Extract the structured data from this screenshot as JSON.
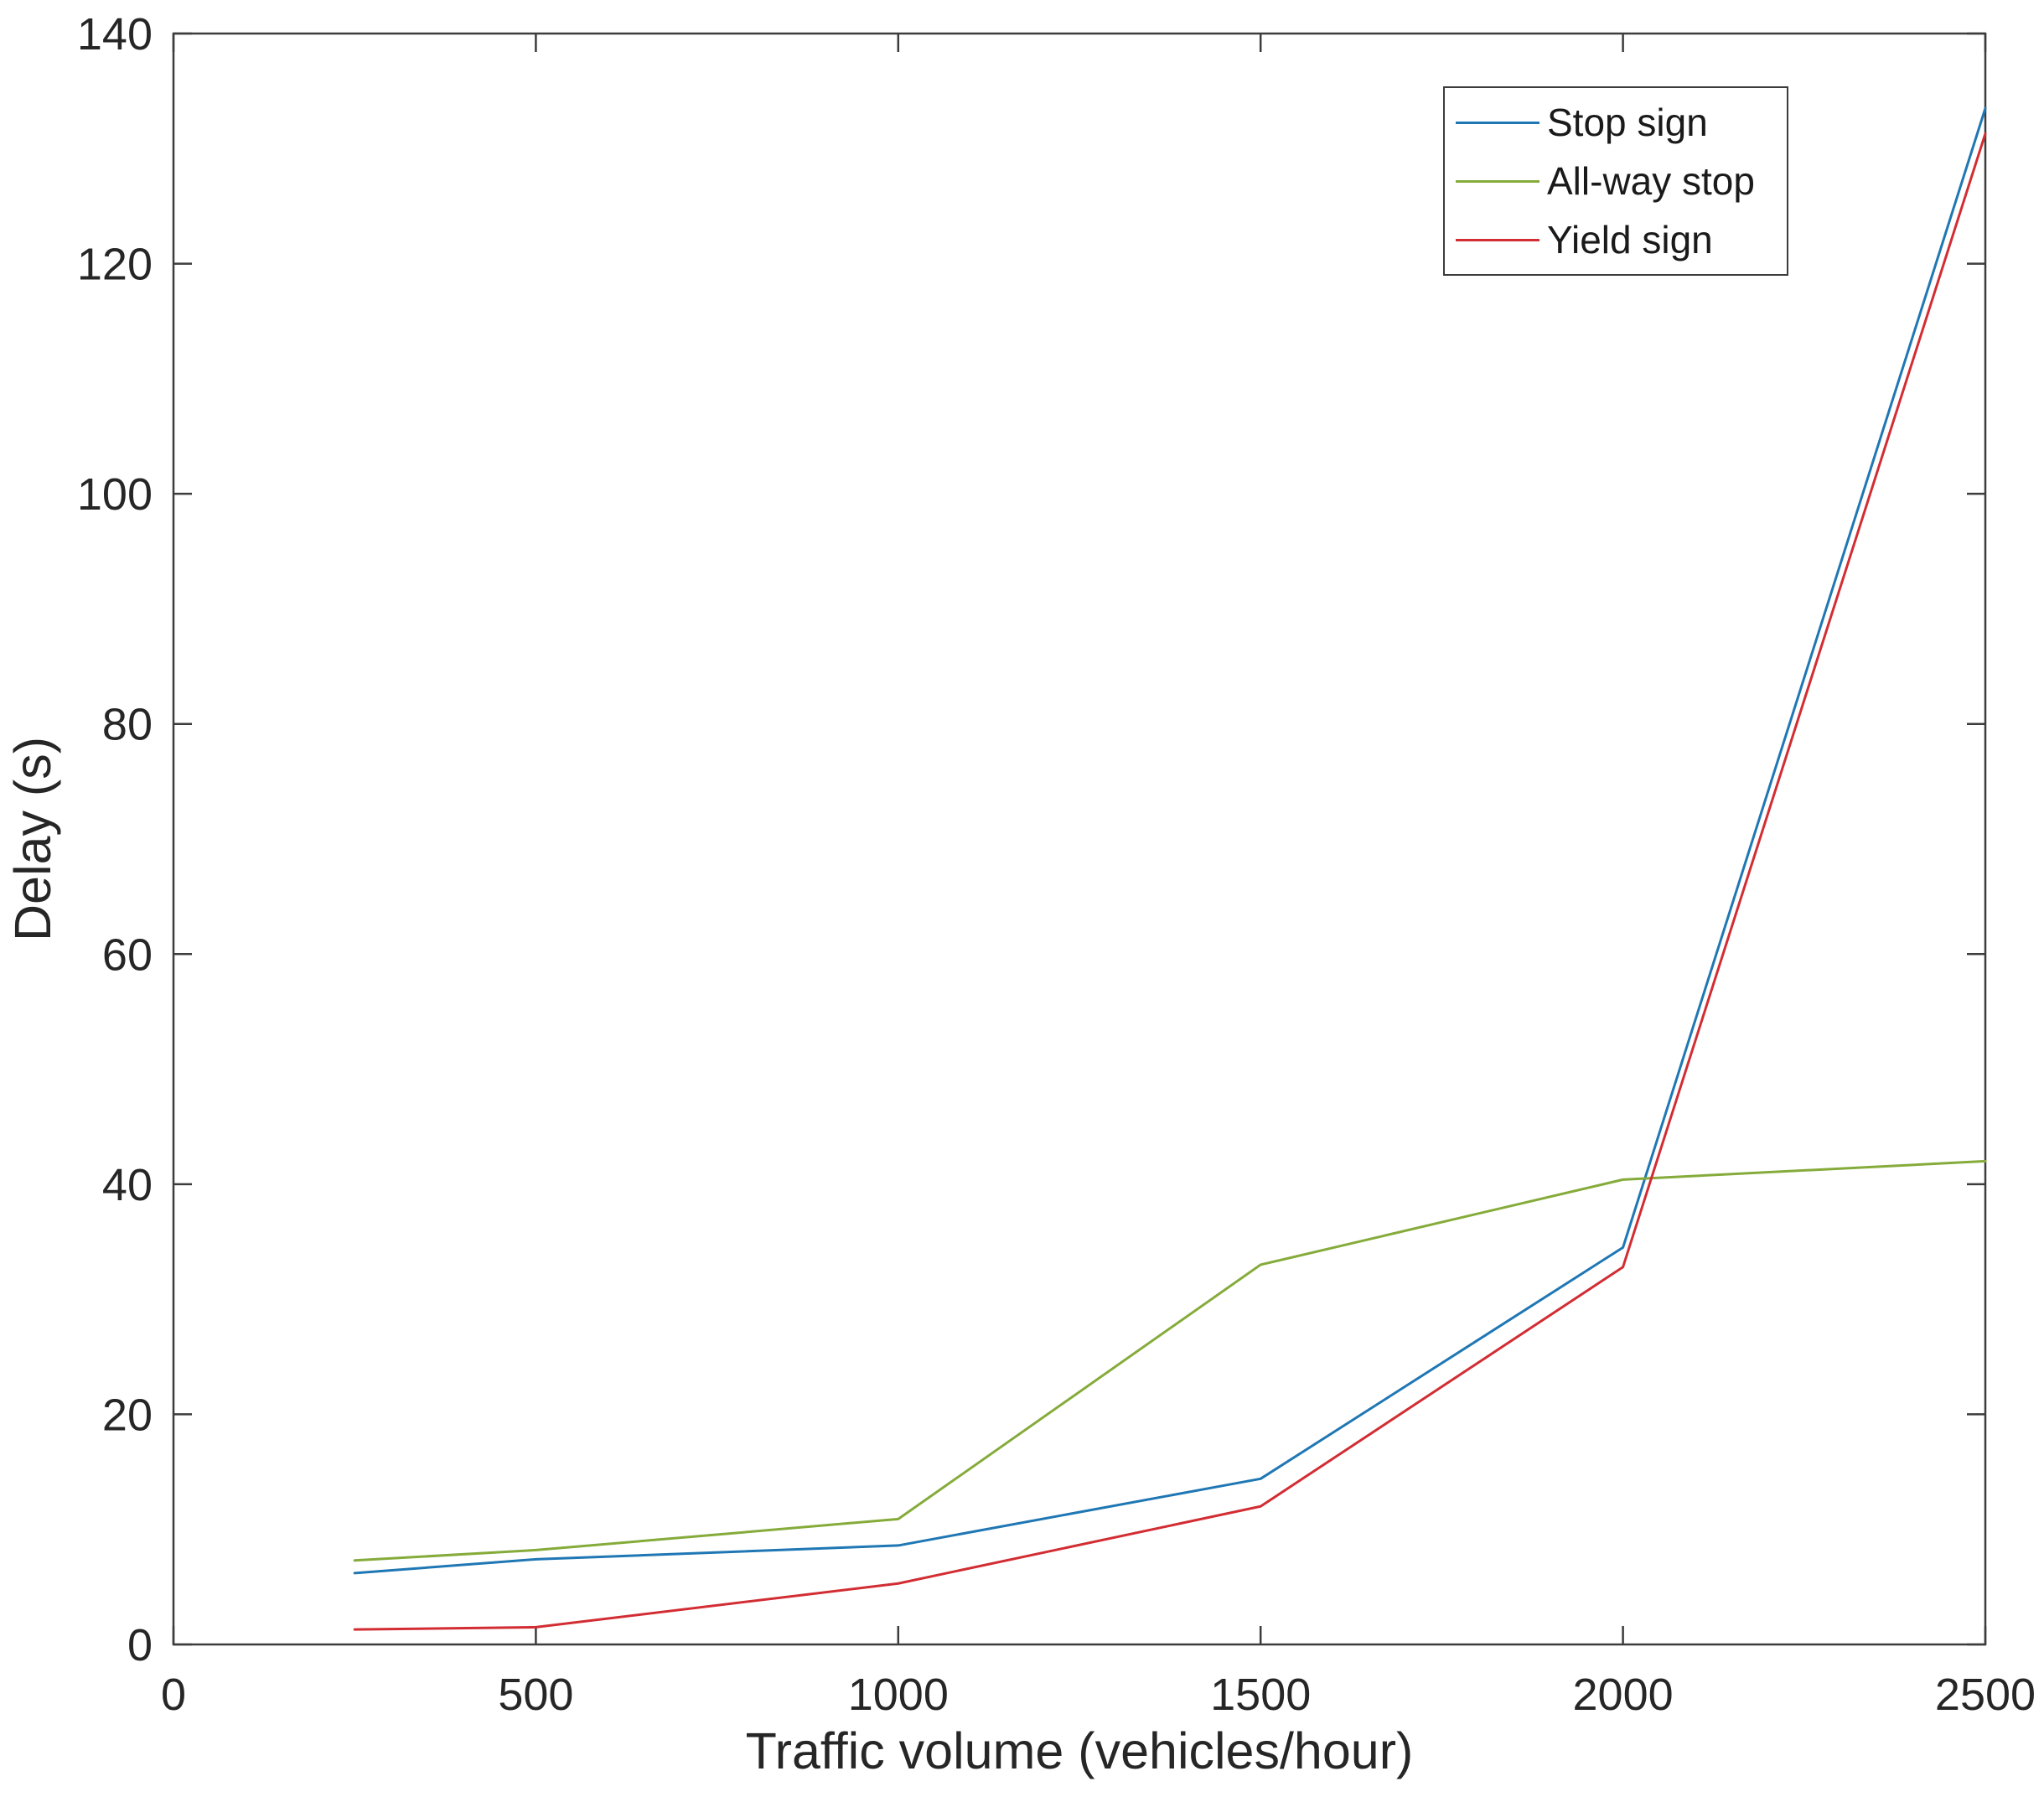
{
  "chart_data": {
    "type": "line",
    "title": "",
    "xlabel": "Traffic volume (vehicles/hour)",
    "ylabel": "Delay (s)",
    "xlim": [
      0,
      2500
    ],
    "ylim": [
      0,
      140
    ],
    "xticks": [
      0,
      500,
      1000,
      1500,
      2000,
      2500
    ],
    "yticks": [
      0,
      20,
      40,
      60,
      80,
      100,
      120,
      140
    ],
    "grid": false,
    "legend_position": "top-right",
    "axis_color": "#3c3c3c",
    "x": [
      250,
      500,
      1000,
      1500,
      2000,
      2500
    ],
    "series": [
      {
        "name": "Stop sign",
        "color": "#1f77b4",
        "values": [
          6.2,
          7.4,
          8.6,
          14.4,
          34.5,
          133.5
        ]
      },
      {
        "name": "All-way stop",
        "color": "#85ab3a",
        "values": [
          7.3,
          8.2,
          10.9,
          33.0,
          40.4,
          42.0
        ]
      },
      {
        "name": "Yield sign",
        "color": "#d22d33",
        "values": [
          1.3,
          1.5,
          5.3,
          12.0,
          32.8,
          131.3
        ]
      }
    ]
  }
}
